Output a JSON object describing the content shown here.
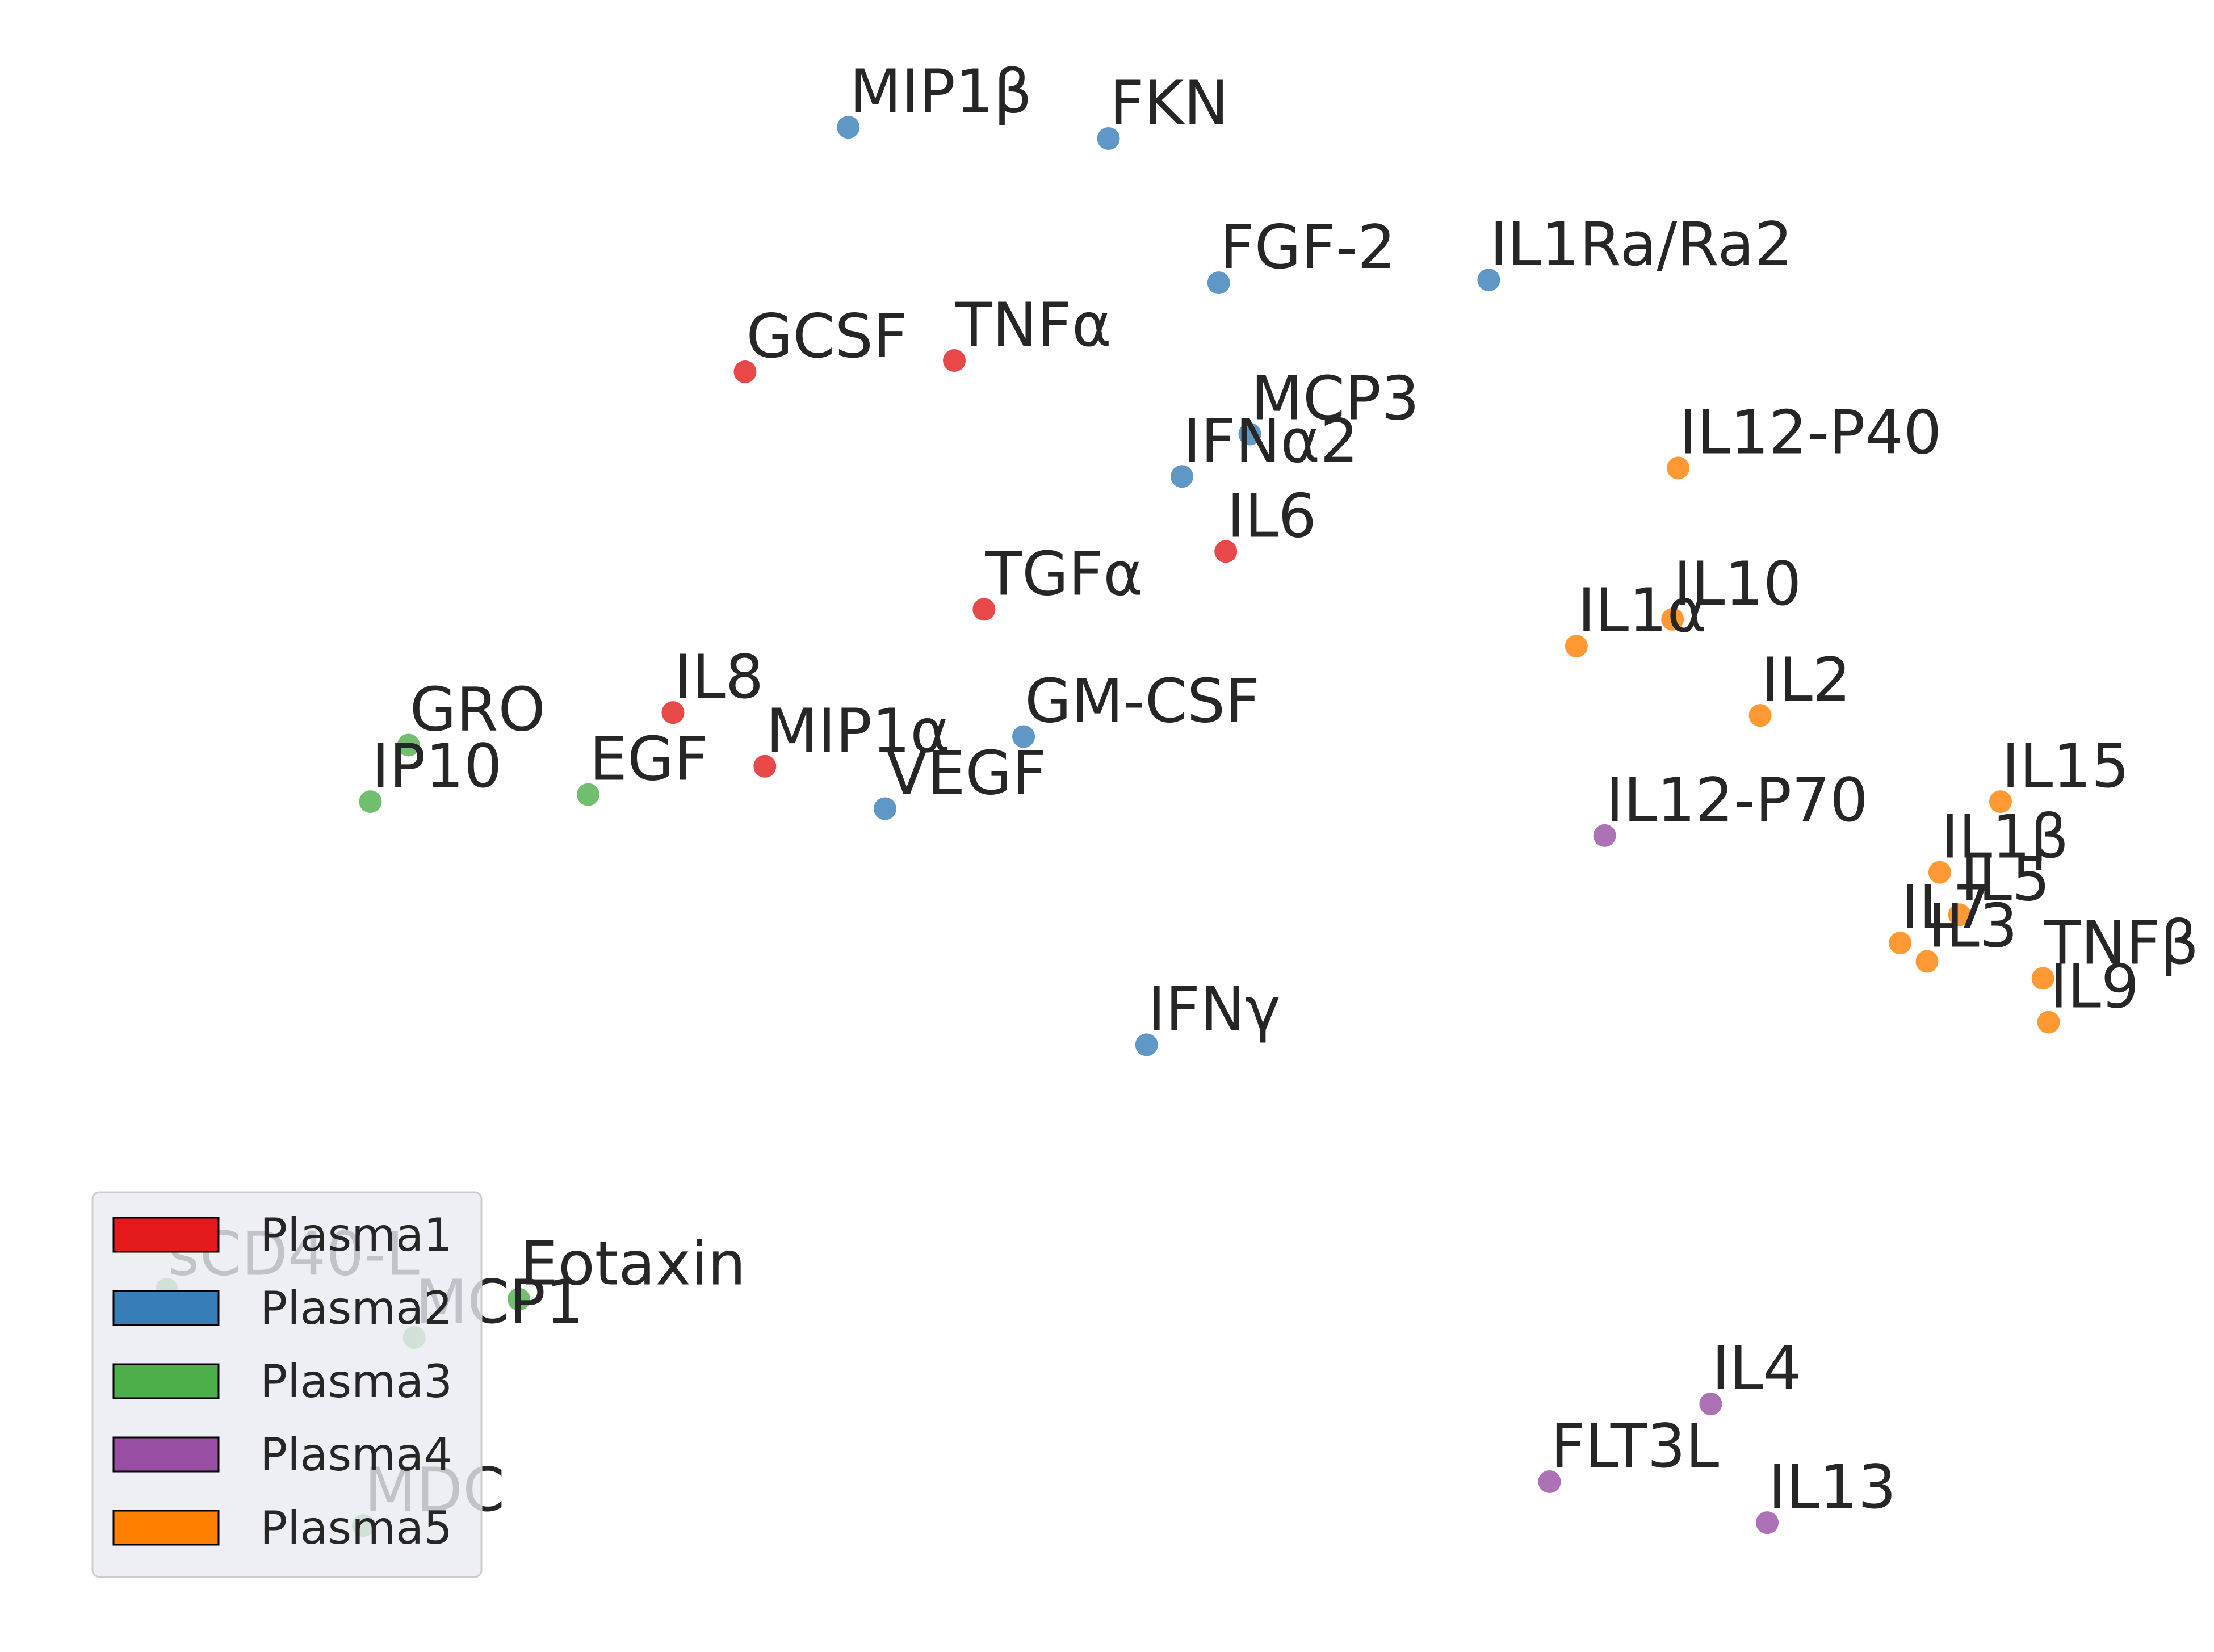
{
  "chart_data": {
    "type": "scatter",
    "title": "",
    "xlabel": "",
    "ylabel": "",
    "axes_visible": false,
    "grid": false,
    "legend": {
      "placement": "bottom-left"
    },
    "xlim": [
      0,
      1566
    ],
    "ylim": [
      1162,
      0
    ],
    "series": [
      {
        "name": "Plasma1",
        "color": "#e41a1c",
        "points": [
          {
            "label": "GCSF",
            "x": 527,
            "y": 263
          },
          {
            "label": "TNFα",
            "x": 675,
            "y": 255
          },
          {
            "label": "IL6",
            "x": 867,
            "y": 390
          },
          {
            "label": "TGFα",
            "x": 696,
            "y": 431
          },
          {
            "label": "IL8",
            "x": 476,
            "y": 504
          },
          {
            "label": "MIP1α",
            "x": 541,
            "y": 542
          }
        ]
      },
      {
        "name": "Plasma2",
        "color": "#377eb8",
        "points": [
          {
            "label": "MIP1β",
            "x": 600,
            "y": 90
          },
          {
            "label": "FKN",
            "x": 784,
            "y": 98
          },
          {
            "label": "FGF-2",
            "x": 862,
            "y": 200
          },
          {
            "label": "IL1Ra/Ra2",
            "x": 1053,
            "y": 198
          },
          {
            "label": "MCP3",
            "x": 884,
            "y": 307
          },
          {
            "label": "IFNα2",
            "x": 836,
            "y": 337
          },
          {
            "label": "GM-CSF",
            "x": 724,
            "y": 521
          },
          {
            "label": "VEGF",
            "x": 626,
            "y": 572
          },
          {
            "label": "IFNγ",
            "x": 811,
            "y": 739
          }
        ]
      },
      {
        "name": "Plasma3",
        "color": "#4daf4a",
        "points": [
          {
            "label": "GRO",
            "x": 289,
            "y": 527
          },
          {
            "label": "IP10",
            "x": 262,
            "y": 567
          },
          {
            "label": "EGF",
            "x": 416,
            "y": 562
          },
          {
            "label": "Eotaxin",
            "x": 367,
            "y": 919
          },
          {
            "label": "sCD40-L",
            "x": 118,
            "y": 912
          },
          {
            "label": "MCP1",
            "x": 293,
            "y": 946
          },
          {
            "label": "MDC",
            "x": 257,
            "y": 1079
          }
        ]
      },
      {
        "name": "Plasma4",
        "color": "#984ea3",
        "points": [
          {
            "label": "IL12-P70",
            "x": 1135,
            "y": 591
          },
          {
            "label": "IL4",
            "x": 1210,
            "y": 993
          },
          {
            "label": "FLT3L",
            "x": 1096,
            "y": 1048
          },
          {
            "label": "IL13",
            "x": 1250,
            "y": 1077
          }
        ]
      },
      {
        "name": "Plasma5",
        "color": "#ff7f00",
        "points": [
          {
            "label": "IL12-P40",
            "x": 1187,
            "y": 331
          },
          {
            "label": "IL10",
            "x": 1183,
            "y": 438
          },
          {
            "label": "IL1α",
            "x": 1115,
            "y": 457
          },
          {
            "label": "IL2",
            "x": 1245,
            "y": 506
          },
          {
            "label": "IL15",
            "x": 1415,
            "y": 567
          },
          {
            "label": "IL1β",
            "x": 1372,
            "y": 617
          },
          {
            "label": "IL5",
            "x": 1386,
            "y": 647
          },
          {
            "label": "IL7",
            "x": 1344,
            "y": 667
          },
          {
            "label": "IL3",
            "x": 1363,
            "y": 680
          },
          {
            "label": "TNFβ",
            "x": 1445,
            "y": 692
          },
          {
            "label": "IL9",
            "x": 1449,
            "y": 723
          }
        ]
      }
    ]
  }
}
